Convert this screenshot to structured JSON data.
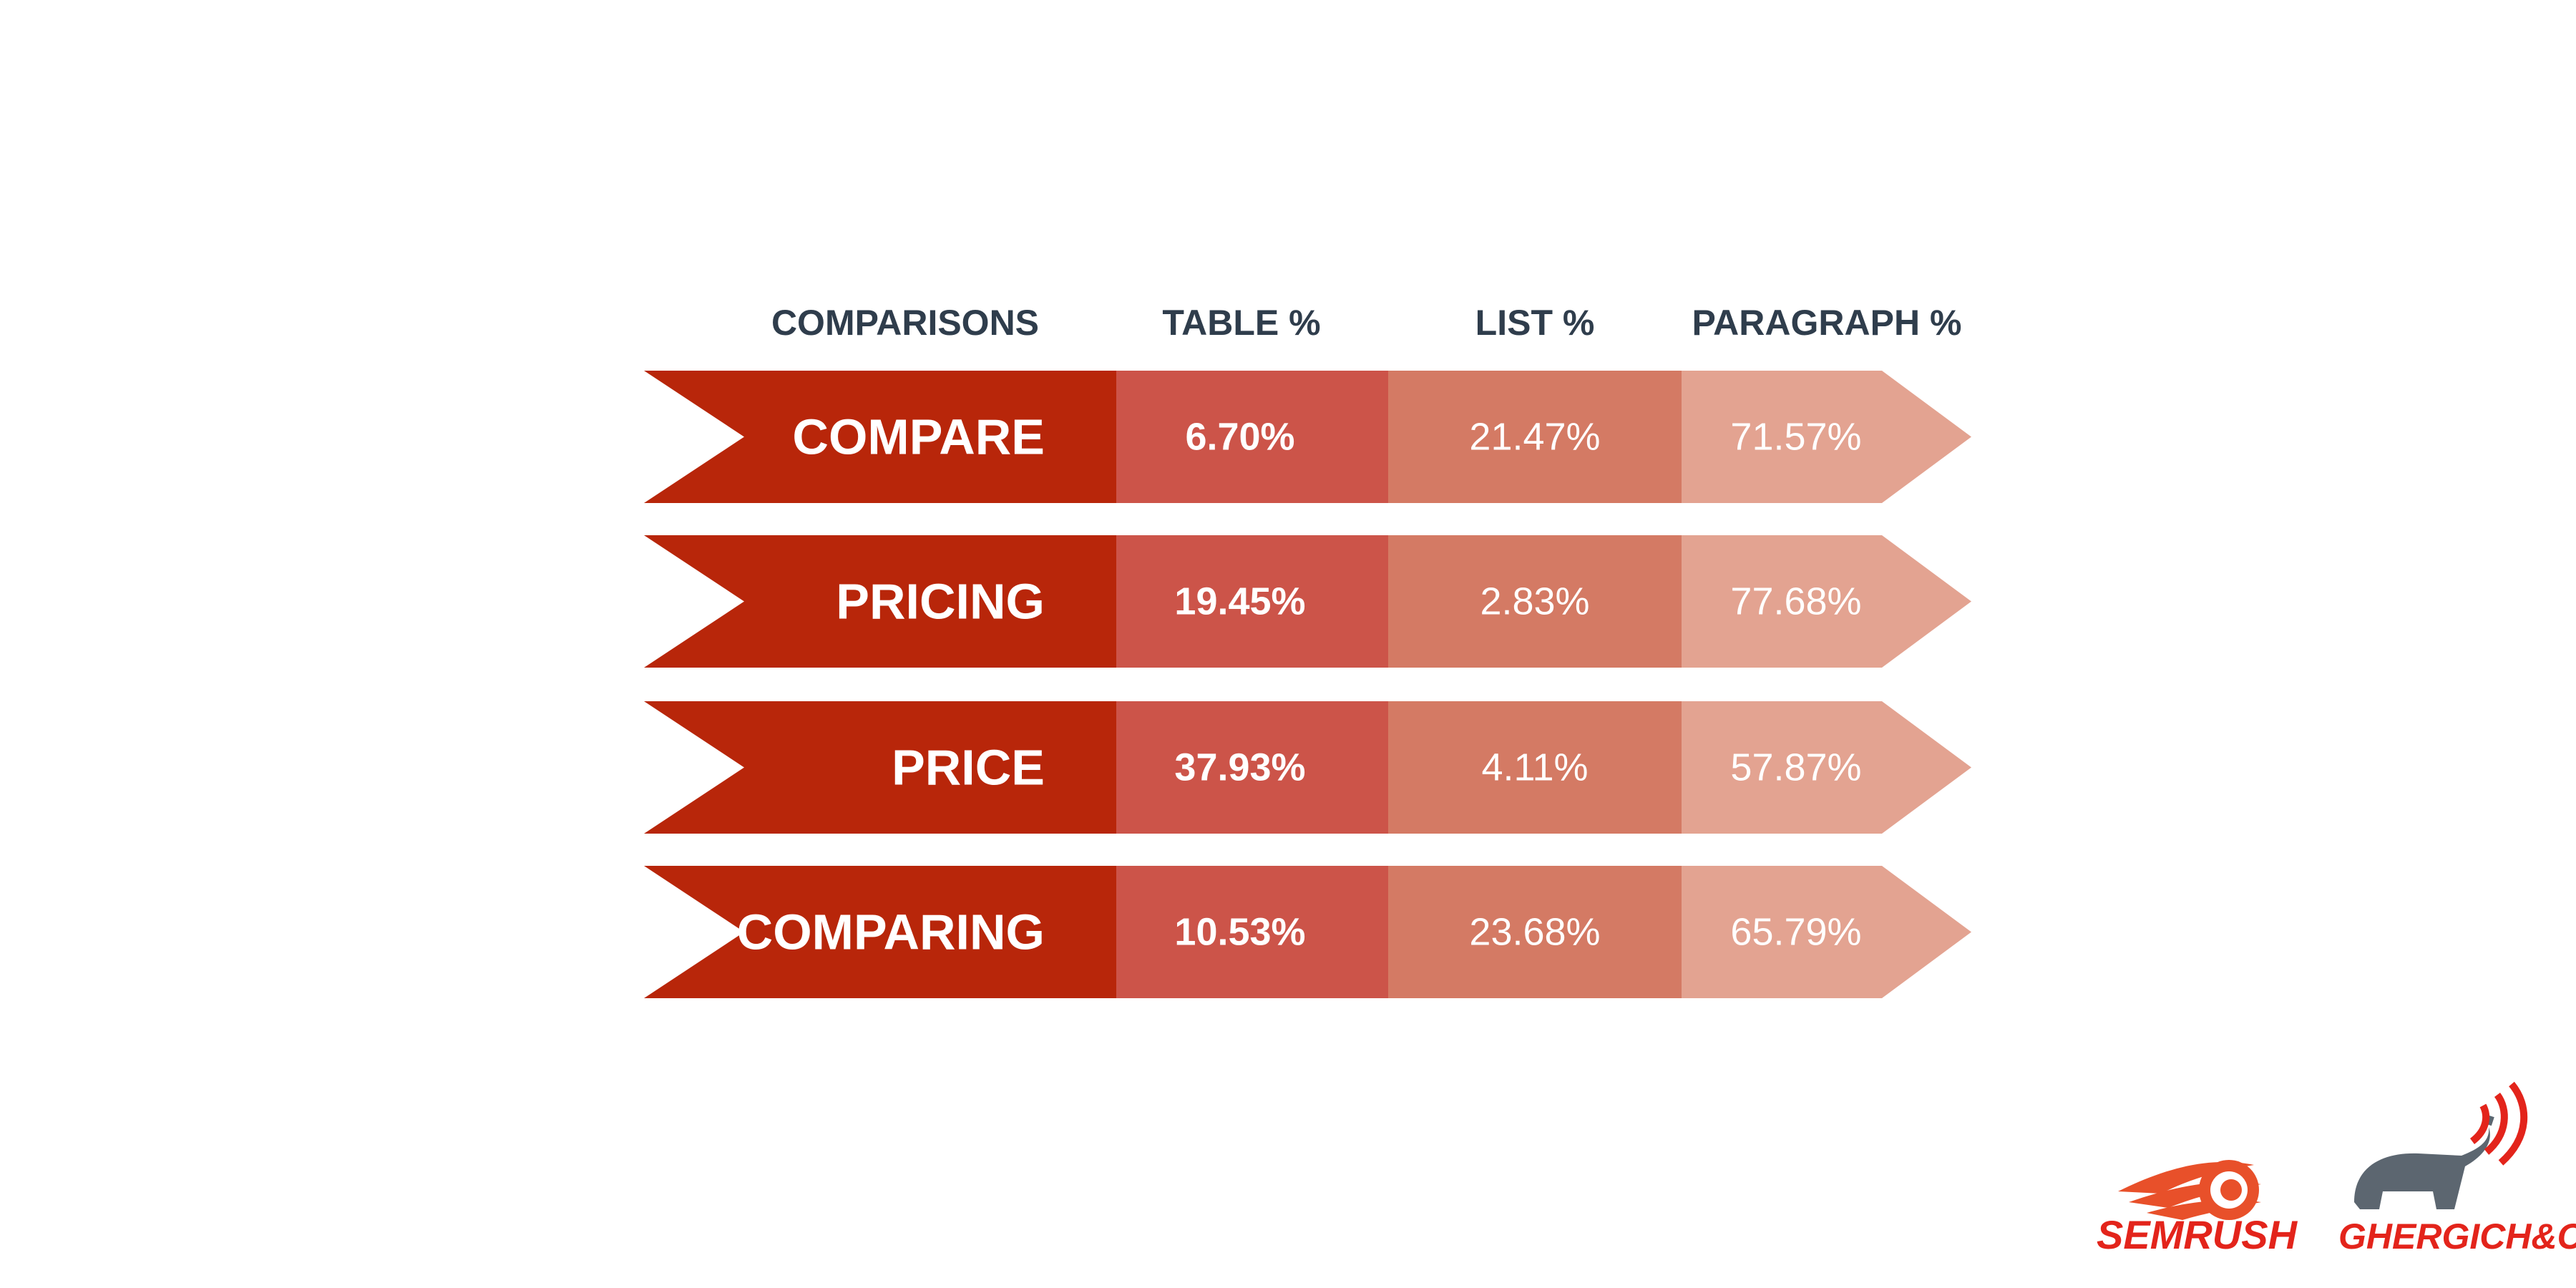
{
  "chart_data": {
    "type": "table",
    "columns": [
      "COMPARISONS",
      "TABLE %",
      "LIST %",
      "PARAGRAPH %"
    ],
    "rows": [
      {
        "label": "COMPARE",
        "values": [
          "6.70%",
          "21.47%",
          "71.57%"
        ]
      },
      {
        "label": "PRICING",
        "values": [
          "19.45%",
          "2.83%",
          "77.68%"
        ]
      },
      {
        "label": "PRICE",
        "values": [
          "37.93%",
          "4.11%",
          "57.87%"
        ]
      },
      {
        "label": "COMPARING",
        "values": [
          "10.53%",
          "23.68%",
          "65.79%"
        ]
      }
    ]
  },
  "colors": {
    "label_band": "#b8260a",
    "table_band": "#cc5449",
    "list_band": "#d47a64",
    "paragraph_band": "#e3a391",
    "header_text": "#2f3d4c"
  },
  "logos": {
    "semrush": {
      "text": "SEMRUSH",
      "icon": "semrush-comet-icon"
    },
    "ghergich": {
      "text": "GHERGICH&Co.",
      "icon": "elephant-signal-icon"
    }
  }
}
